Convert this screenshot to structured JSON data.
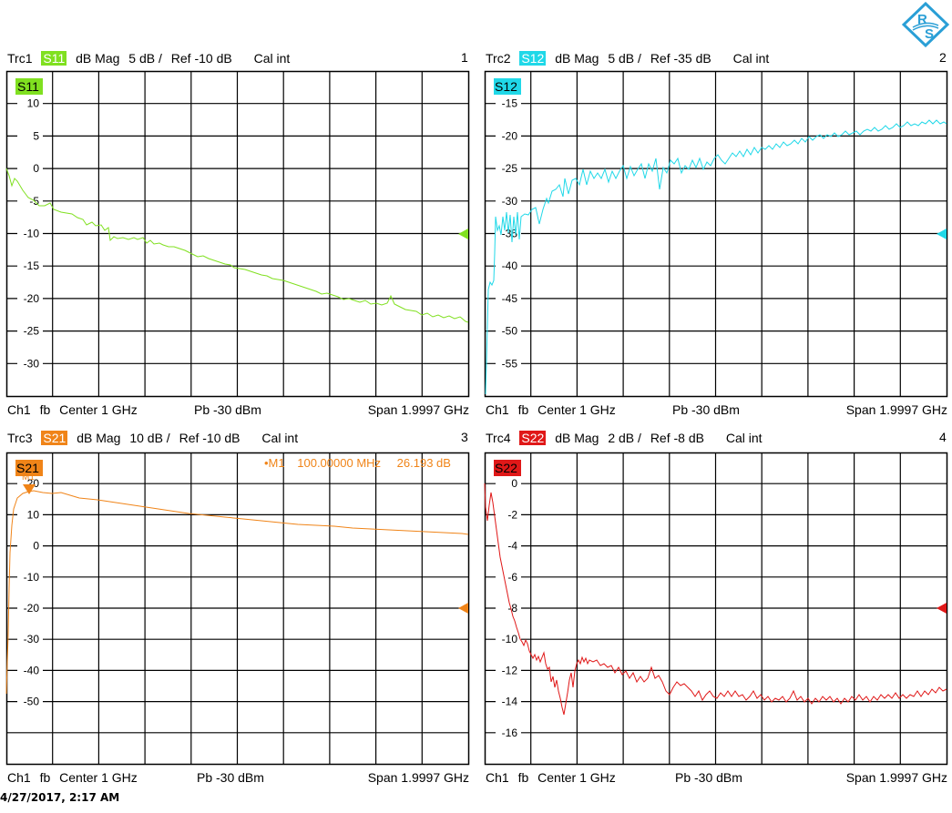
{
  "logo": {
    "text": "R&S",
    "color": "#2a9fd6"
  },
  "timestamp": "4/27/2017, 2:17 AM",
  "panels": [
    {
      "trace": "Trc1",
      "param": "S11",
      "format": "dB Mag",
      "scale": "5 dB /",
      "ref": "Ref -10 dB",
      "cal": "Cal int",
      "number": "1",
      "color": "#80e020",
      "footer": {
        "channel": "Ch1",
        "fb": "fb",
        "center": "Center  1 GHz",
        "power": "Pb   -30 dBm",
        "span": "Span  1.9997 GHz"
      },
      "yticks": [
        "10",
        "5",
        "0",
        "-5",
        "-10",
        "-15",
        "-20",
        "-25",
        "-30"
      ]
    },
    {
      "trace": "Trc2",
      "param": "S12",
      "format": "dB Mag",
      "scale": "5 dB /",
      "ref": "Ref -35 dB",
      "cal": "Cal int",
      "number": "2",
      "color": "#20d8e8",
      "footer": {
        "channel": "Ch1",
        "fb": "fb",
        "center": "Center  1 GHz",
        "power": "Pb   -30 dBm",
        "span": "Span  1.9997 GHz"
      },
      "yticks": [
        "-15",
        "-20",
        "-25",
        "-30",
        "-35",
        "-40",
        "-45",
        "-50",
        "-55"
      ]
    },
    {
      "trace": "Trc3",
      "param": "S21",
      "format": "dB Mag",
      "scale": "10 dB /",
      "ref": "Ref -10 dB",
      "cal": "Cal int",
      "number": "3",
      "color": "#f08418",
      "marker": {
        "label": "•M1",
        "freq": "100.00000 MHz",
        "value": "26.193 dB",
        "tag": "M1"
      },
      "footer": {
        "channel": "Ch1",
        "fb": "fb",
        "center": "Center  1 GHz",
        "power": "Pb   -30 dBm",
        "span": "Span  1.9997 GHz"
      },
      "yticks": [
        "20",
        "10",
        "0",
        "-10",
        "-20",
        "-30",
        "-40",
        "-50"
      ]
    },
    {
      "trace": "Trc4",
      "param": "S22",
      "format": "dB Mag",
      "scale": "2 dB /",
      "ref": "Ref -8 dB",
      "cal": "Cal int",
      "number": "4",
      "color": "#e01818",
      "footer": {
        "channel": "Ch1",
        "fb": "fb",
        "center": "Center  1 GHz",
        "power": "Pb   -30 dBm",
        "span": "Span  1.9997 GHz"
      },
      "yticks": [
        "0",
        "-2",
        "-4",
        "-6",
        "-8",
        "-10",
        "-12",
        "-14",
        "-16"
      ]
    }
  ],
  "chart_data": [
    {
      "type": "line",
      "title": "Trc1 S11 dB Mag 5 dB / Ref -10 dB",
      "xlabel": "Frequency (Center 1 GHz, Span 1.9997 GHz)",
      "ylabel": "dB",
      "ylim": [
        -35,
        15
      ],
      "grid": true,
      "x": [
        0.0,
        0.1,
        0.2,
        0.3,
        0.4,
        0.5,
        0.6,
        0.7,
        0.8,
        0.9,
        1.0,
        1.1,
        1.2,
        1.3,
        1.4,
        1.5,
        1.6,
        1.7,
        1.8,
        1.9,
        2.0
      ],
      "series": [
        {
          "name": "S11",
          "values": [
            -0.5,
            -4,
            -5.5,
            -6.5,
            -8,
            -11,
            -11,
            -12,
            -13,
            -14,
            -15,
            -16,
            -17,
            -18,
            -19,
            -19.5,
            -20.5,
            -21,
            -22,
            -23,
            -23.5
          ]
        }
      ]
    },
    {
      "type": "line",
      "title": "Trc2 S12 dB Mag 5 dB / Ref -35 dB",
      "xlabel": "Frequency (Center 1 GHz, Span 1.9997 GHz)",
      "ylabel": "dB",
      "ylim": [
        -60,
        -10
      ],
      "grid": true,
      "x": [
        0.0,
        0.02,
        0.1,
        0.2,
        0.3,
        0.4,
        0.5,
        0.6,
        0.7,
        0.8,
        0.9,
        1.0,
        1.1,
        1.2,
        1.3,
        1.4,
        1.5,
        1.6,
        1.7,
        1.8,
        1.9,
        2.0
      ],
      "series": [
        {
          "name": "S12",
          "values": [
            -60,
            -43,
            -34,
            -32.5,
            -30,
            -28.5,
            -27,
            -26,
            -25,
            -24,
            -23,
            -22.5,
            -21.5,
            -21,
            -20.5,
            -20,
            -19.5,
            -19.5,
            -19,
            -18.5,
            -18,
            -18
          ]
        }
      ]
    },
    {
      "type": "line",
      "title": "Trc3 S21 dB Mag 10 dB / Ref -10 dB",
      "xlabel": "Frequency (Center 1 GHz, Span 1.9997 GHz)",
      "ylabel": "dB",
      "ylim": [
        -60,
        30
      ],
      "grid": true,
      "x": [
        0.0,
        0.01,
        0.03,
        0.1,
        0.2,
        0.4,
        0.6,
        0.8,
        1.0,
        1.2,
        1.4,
        1.6,
        1.8,
        2.0
      ],
      "series": [
        {
          "name": "S21",
          "values": [
            -38,
            -20,
            15,
            26.2,
            26,
            24,
            22,
            20,
            19,
            18,
            16.5,
            15.5,
            14.5,
            13.5
          ]
        }
      ],
      "annotations": [
        {
          "marker": "M1",
          "x": "100.00000 MHz",
          "y": "26.193 dB"
        }
      ]
    },
    {
      "type": "line",
      "title": "Trc4 S22 dB Mag 2 dB / Ref -8 dB",
      "xlabel": "Frequency (Center 1 GHz, Span 1.9997 GHz)",
      "ylabel": "dB",
      "ylim": [
        -18,
        2
      ],
      "grid": true,
      "x": [
        0.0,
        0.02,
        0.05,
        0.1,
        0.2,
        0.3,
        0.4,
        0.5,
        0.6,
        0.8,
        1.0,
        1.2,
        1.4,
        1.6,
        1.8,
        2.0
      ],
      "series": [
        {
          "name": "S22",
          "values": [
            -2,
            -0.5,
            -2.5,
            -6,
            -10,
            -11.5,
            -15,
            -11.5,
            -12,
            -12.5,
            -13.5,
            -13.5,
            -13.5,
            -13.8,
            -13.5,
            -13.2
          ]
        }
      ]
    }
  ]
}
